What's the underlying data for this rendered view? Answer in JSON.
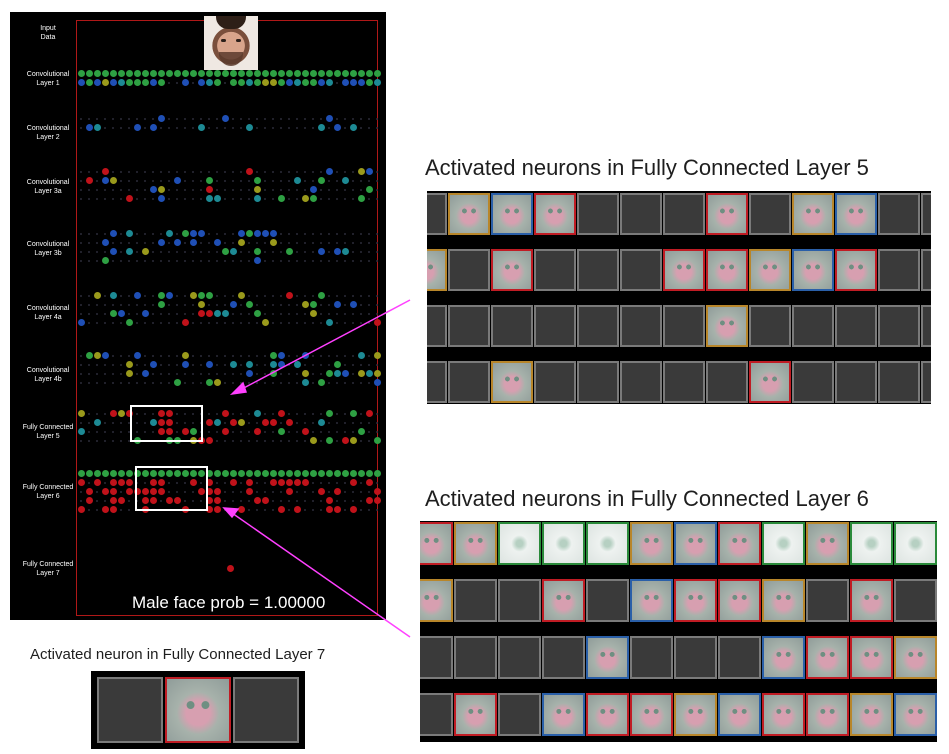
{
  "input_label": "Input\nData",
  "layers": [
    {
      "name": "Convolutional\nLayer 1"
    },
    {
      "name": "Convolutional\nLayer 2"
    },
    {
      "name": "Convolutional\nLayer 3a"
    },
    {
      "name": "Convolutional\nLayer 3b"
    },
    {
      "name": "Convolutional\nLayer 4a"
    },
    {
      "name": "Convolutional\nLayer 4b"
    },
    {
      "name": "Fully Connected\nLayer 5"
    },
    {
      "name": "Fully Connected\nLayer 6"
    },
    {
      "name": "Fully Connected\nLayer 7"
    }
  ],
  "male_face_prob_text": "Male face prob = 1.00000",
  "fc5_title": "Activated neurons in Fully Connected Layer 5",
  "fc6_title": "Activated neurons in Fully Connected Layer 6",
  "fc7_title": "Activated neuron in Fully Connected Layer 7",
  "colors": {
    "green": "#2ea043",
    "blue": "#1f4fb5",
    "teal": "#1d8a94",
    "olive": "#9a9a1c",
    "red": "#c0121a",
    "arrow": "#ff40ff",
    "frame": "#b01818"
  },
  "fc5_grid": [
    [
      "off",
      "act",
      "act",
      "act",
      "off",
      "off",
      "off",
      "act",
      "off",
      "act",
      "act",
      "off",
      "off"
    ],
    [
      "act",
      "off",
      "act",
      "off",
      "off",
      "off",
      "act",
      "act",
      "act",
      "act",
      "act",
      "off",
      "off"
    ],
    [
      "off",
      "off",
      "off",
      "off",
      "off",
      "off",
      "off",
      "act",
      "off",
      "off",
      "off",
      "off",
      "off"
    ],
    [
      "off",
      "off",
      "act",
      "off",
      "off",
      "off",
      "off",
      "off",
      "act",
      "off",
      "off",
      "off",
      "off"
    ]
  ],
  "fc6_grid": [
    [
      "act",
      "act",
      "pale",
      "pale",
      "pale",
      "act",
      "act",
      "act",
      "pale",
      "act",
      "pale",
      "pale",
      "pale",
      "pale"
    ],
    [
      "act",
      "off",
      "off",
      "act",
      "off",
      "act",
      "act",
      "act",
      "act",
      "off",
      "act",
      "off",
      "off",
      "off"
    ],
    [
      "off",
      "off",
      "off",
      "off",
      "act",
      "off",
      "off",
      "off",
      "act",
      "act",
      "act",
      "act",
      "act",
      "off"
    ],
    [
      "off",
      "act",
      "off",
      "act",
      "act",
      "act",
      "act",
      "act",
      "act",
      "act",
      "act",
      "act",
      "act",
      "act"
    ]
  ],
  "fc7_grid": [
    "off",
    "act",
    "off"
  ]
}
